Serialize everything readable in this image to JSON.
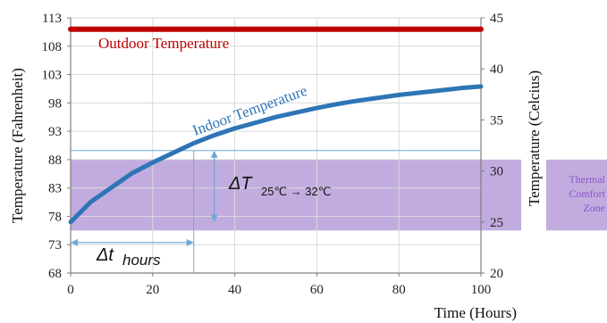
{
  "chart_data": {
    "type": "line",
    "xlabel": "Time (Hours)",
    "ylabel_left": "Temperature (Fahrenheit)",
    "ylabel_right": "Temperature (Celcius)",
    "xlim": [
      0,
      100
    ],
    "ylim_left": [
      68,
      113
    ],
    "ylim_right": [
      20,
      45
    ],
    "x_ticks": [
      0,
      20,
      40,
      60,
      80,
      100
    ],
    "y_ticks_left": [
      68,
      73,
      78,
      83,
      88,
      93,
      98,
      103,
      108,
      113
    ],
    "y_ticks_right": [
      20,
      25,
      30,
      35,
      40,
      45
    ],
    "grid": true,
    "series": [
      {
        "name": "Outdoor Temperature",
        "color": "#c00000",
        "x": [
          0,
          100
        ],
        "y": [
          111,
          111
        ]
      },
      {
        "name": "Indoor Temperature",
        "color": "#2e75b6",
        "x": [
          0,
          5,
          10,
          15,
          20,
          25,
          30,
          35,
          40,
          45,
          50,
          55,
          60,
          65,
          70,
          75,
          80,
          85,
          90,
          95,
          100
        ],
        "y": [
          77,
          80.6,
          83.1,
          85.6,
          87.5,
          89.2,
          90.9,
          92.3,
          93.5,
          94.5,
          95.5,
          96.3,
          97.1,
          97.8,
          98.4,
          98.9,
          99.4,
          99.8,
          100.2,
          100.6,
          100.9
        ]
      }
    ],
    "comfort_zone": {
      "label_lines": [
        "Thermal",
        "Comfort",
        "Zone"
      ],
      "color": "#b49ad8",
      "label_color": "#8a55c8",
      "y_range_f": [
        75.5,
        88
      ]
    },
    "annotations": {
      "delta_t": {
        "main": "ΔT",
        "subscript": "25℃ → 32℃",
        "x": 35,
        "y_range_f": [
          77,
          89.6
        ]
      },
      "delta_time": {
        "main": "Δt",
        "subscript": "hours",
        "x_range": [
          0,
          30
        ],
        "y_f": 74
      },
      "reference_lines": {
        "color": "#6fa8d6",
        "y_f": 89.6,
        "x": 30
      }
    }
  }
}
